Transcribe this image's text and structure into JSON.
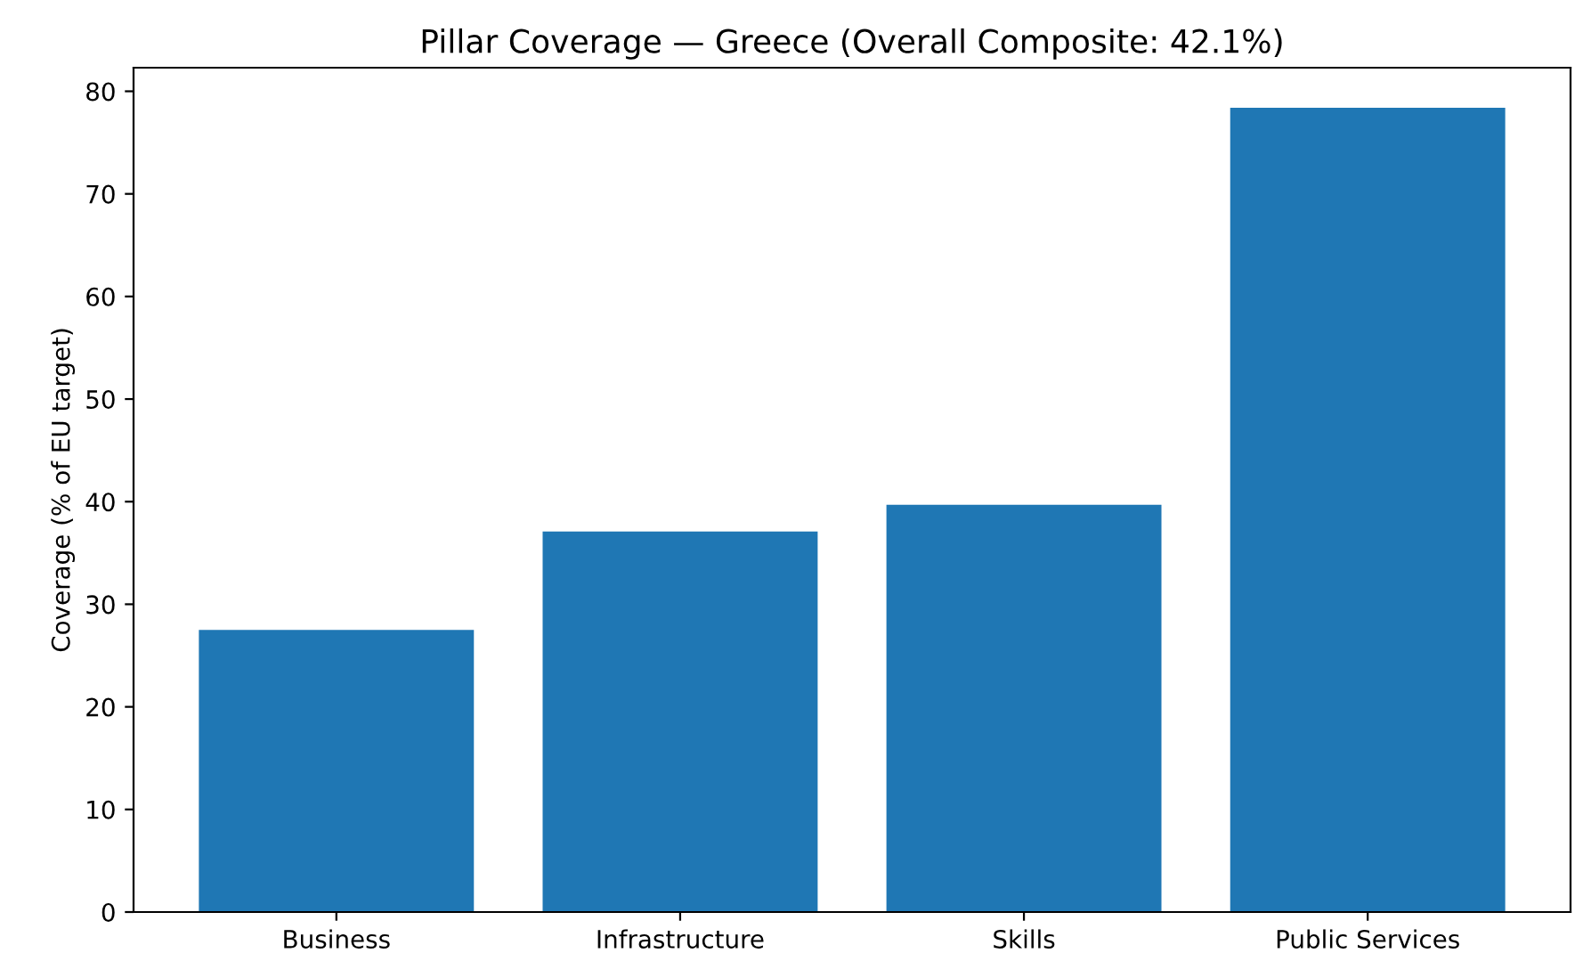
{
  "chart_data": {
    "type": "bar",
    "title": "Pillar Coverage — Greece (Overall Composite: 42.1%)",
    "ylabel": "Coverage (% of EU target)",
    "categories": [
      "Business",
      "Infrastructure",
      "Skills",
      "Public Services"
    ],
    "values": [
      27.5,
      37.1,
      39.7,
      78.4
    ],
    "color": "#1f77b4",
    "ylim": [
      0,
      82.3
    ],
    "yticks": [
      0,
      10,
      20,
      30,
      40,
      50,
      60,
      70,
      80
    ],
    "grid": false
  }
}
